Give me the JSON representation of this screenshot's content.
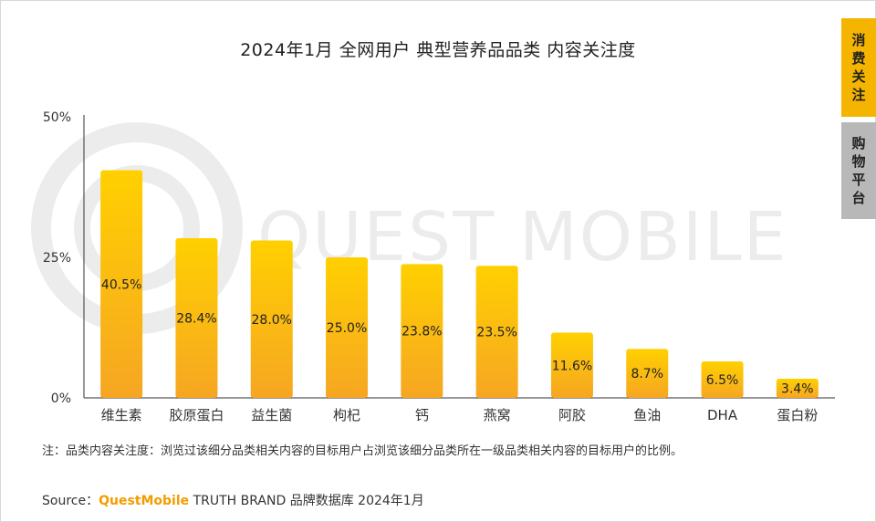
{
  "title": "2024年1月 全网用户 典型营养品品类 内容关注度",
  "side_tabs": [
    {
      "label": "消费关注",
      "active": true
    },
    {
      "label": "购物平台",
      "active": false
    }
  ],
  "watermark": "QUEST MOBILE",
  "note": "注：品类内容关注度：浏览过该细分品类相关内容的目标用户占浏览该细分品类所在一级品类相关内容的目标用户的比例。",
  "source": {
    "prefix": "Source：",
    "brand": "QuestMobile",
    "suffix": " TRUTH BRAND 品牌数据库 2024年1月"
  },
  "colors": {
    "bar_top": "#ffd000",
    "bar_bottom": "#f6a623",
    "accent": "#f5b400",
    "inactive_tab": "#b8b8b8"
  },
  "chart_data": {
    "type": "bar",
    "categories": [
      "维生素",
      "胶原蛋白",
      "益生菌",
      "枸杞",
      "钙",
      "燕窝",
      "阿胶",
      "鱼油",
      "DHA",
      "蛋白粉"
    ],
    "values": [
      40.5,
      28.4,
      28.0,
      25.0,
      23.8,
      23.5,
      11.6,
      8.7,
      6.5,
      3.4
    ],
    "data_labels": [
      "40.5%",
      "28.4%",
      "28.0%",
      "25.0%",
      "23.8%",
      "23.5%",
      "11.6%",
      "8.7%",
      "6.5%",
      "3.4%"
    ],
    "ylim": [
      0,
      50
    ],
    "yticks": [
      0,
      25,
      50
    ],
    "ytick_labels": [
      "0%",
      "25%",
      "50%"
    ],
    "grid": false,
    "xlabel": "",
    "ylabel": ""
  }
}
